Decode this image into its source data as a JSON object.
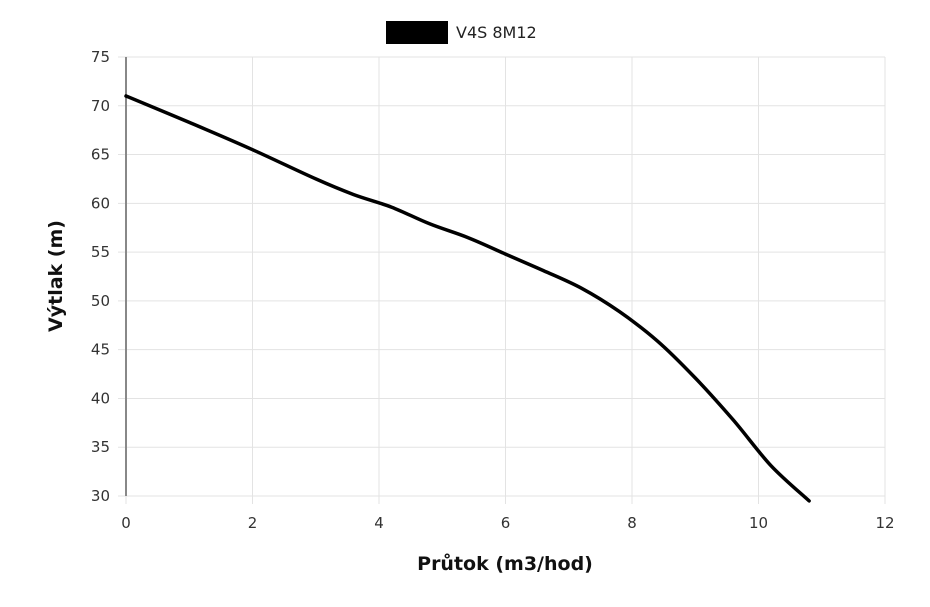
{
  "chart_data": {
    "type": "line",
    "xlabel": "Průtok (m3/hod)",
    "ylabel": "Výtlak (m)",
    "xlim": [
      0,
      12
    ],
    "ylim": [
      30,
      75
    ],
    "x_ticks": [
      "0",
      "2",
      "4",
      "6",
      "8",
      "10",
      "12"
    ],
    "y_ticks": [
      "30",
      "35",
      "40",
      "45",
      "50",
      "55",
      "60",
      "65",
      "70",
      "75"
    ],
    "grid": true,
    "legend_position": "top-center",
    "series": [
      {
        "name": "V4S 8M12",
        "color": "#000000",
        "x": [
          0,
          1,
          2,
          3,
          3.6,
          4.2,
          4.8,
          5.4,
          6,
          6.6,
          7.2,
          7.8,
          8.4,
          9,
          9.6,
          10.2,
          10.8
        ],
        "y": [
          71,
          68.3,
          65.5,
          62.5,
          60.9,
          59.6,
          57.9,
          56.5,
          54.8,
          53.1,
          51.3,
          48.9,
          45.9,
          42.1,
          37.8,
          33.1,
          29.5
        ]
      }
    ]
  }
}
